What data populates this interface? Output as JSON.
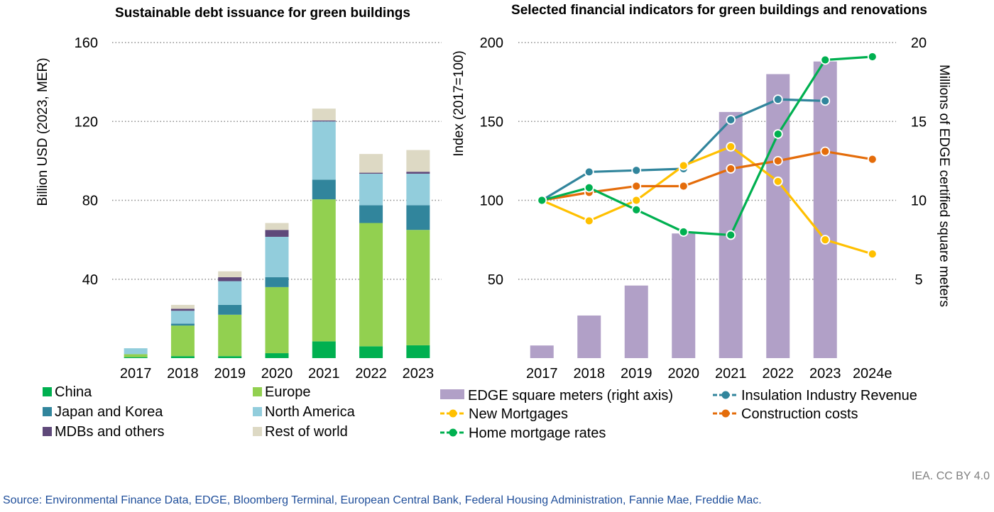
{
  "chart_data": [
    {
      "type": "bar",
      "stacked": true,
      "title": "Sustainable debt issuance for green buildings",
      "xlabel": "",
      "ylabel": "Billion USD (2023, MER)",
      "ylim": [
        0,
        160
      ],
      "yticks": [
        40,
        80,
        120,
        160
      ],
      "grid": true,
      "legend_position": "bottom",
      "categories": [
        "2017",
        "2018",
        "2019",
        "2020",
        "2021",
        "2022",
        "2023"
      ],
      "series": [
        {
          "name": "China",
          "color": "#00b050",
          "values": [
            0.5,
            1,
            1,
            2.5,
            8.5,
            6,
            6.5
          ]
        },
        {
          "name": "Europe",
          "color": "#92d050",
          "values": [
            1.5,
            15.5,
            21,
            33.5,
            72,
            62.5,
            58.5
          ]
        },
        {
          "name": "Japan and Korea",
          "color": "#31859c",
          "values": [
            0,
            1,
            5,
            5,
            10,
            9,
            12.5
          ]
        },
        {
          "name": "North America",
          "color": "#92cddc",
          "values": [
            3,
            6.5,
            12,
            20.5,
            29.5,
            16,
            16
          ]
        },
        {
          "name": "MDBs and others",
          "color": "#5f497a",
          "values": [
            0,
            1,
            2,
            3.5,
            0.5,
            0.5,
            1
          ]
        },
        {
          "name": "Rest of world",
          "color": "#ddd9c4",
          "values": [
            0,
            2,
            3,
            3.5,
            6,
            9.5,
            11
          ]
        }
      ]
    },
    {
      "type": "bar+line",
      "title": "Selected financial indicators for green buildings and renovations",
      "xlabel": "",
      "ylabel": "Index (2017=100)",
      "ylabel_right": "Millions of EDGE certified square meters",
      "ylim": [
        0,
        200
      ],
      "yticks": [
        50,
        100,
        150,
        200
      ],
      "ylim_right": [
        0,
        20
      ],
      "yticks_right": [
        5,
        10,
        15,
        20
      ],
      "grid": true,
      "legend_position": "bottom",
      "categories": [
        "2017",
        "2018",
        "2019",
        "2020",
        "2021",
        "2022",
        "2023",
        "2024e"
      ],
      "bars": {
        "name": "EDGE square meters (right axis)",
        "color": "#b1a0c7",
        "axis": "right",
        "values": [
          0.8,
          2.7,
          4.6,
          7.9,
          15.6,
          18,
          18.8,
          null
        ]
      },
      "lines": [
        {
          "name": "Insulation Industry Revenue",
          "color": "#31859c",
          "values": [
            100,
            118,
            119,
            120,
            151,
            164,
            163,
            null
          ]
        },
        {
          "name": "New Mortgages",
          "color": "#ffc000",
          "values": [
            100,
            87,
            100,
            122,
            134,
            112,
            75,
            66
          ]
        },
        {
          "name": "Construction costs",
          "color": "#e46c0a",
          "values": [
            100,
            105,
            109,
            109,
            120,
            125,
            131,
            126
          ]
        },
        {
          "name": "Home mortgage rates",
          "color": "#00b050",
          "values": [
            100,
            108,
            94,
            80,
            78,
            142,
            189,
            191
          ]
        }
      ]
    }
  ],
  "footer": {
    "credit": "IEA. CC BY 4.0",
    "source": "Source: Environmental Finance Data, EDGE, Bloomberg Terminal, European Central Bank, Federal Housing Administration, Fannie Mae, Freddie Mac."
  }
}
